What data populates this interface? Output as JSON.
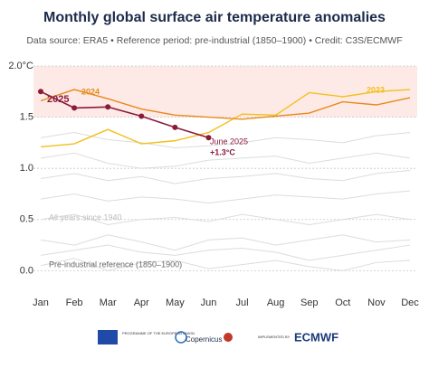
{
  "chart_data": {
    "type": "line",
    "title": "Monthly global surface air temperature anomalies",
    "subtitle": "Data source: ERA5 • Reference period: pre-industrial (1850–1900) • Credit: C3S/ECMWF",
    "categories": [
      "Jan",
      "Feb",
      "Mar",
      "Apr",
      "May",
      "Jun",
      "Jul",
      "Aug",
      "Sep",
      "Oct",
      "Nov",
      "Dec"
    ],
    "ylim": [
      -0.2,
      2.0
    ],
    "yticks": [
      {
        "value": 0,
        "label": "0.0"
      },
      {
        "value": 0.5,
        "label": "0.5"
      },
      {
        "value": 1,
        "label": "1.0"
      },
      {
        "value": 1.5,
        "label": "1.5"
      },
      {
        "value": 2,
        "label": "2.0°C"
      }
    ],
    "grid": true,
    "highlight_band": [
      1.5,
      2.0
    ],
    "background": {
      "label": "All years since 1940",
      "color": "#dcdcdc",
      "values": [
        [
          0.05,
          0.12,
          0.0,
          0.08,
          0.1,
          0.02,
          0.06,
          0.1,
          0.04,
          0.0,
          0.08,
          0.1
        ],
        [
          0.3,
          0.25,
          0.35,
          0.28,
          0.2,
          0.3,
          0.32,
          0.25,
          0.3,
          0.35,
          0.28,
          0.3
        ],
        [
          0.5,
          0.55,
          0.45,
          0.5,
          0.52,
          0.48,
          0.55,
          0.5,
          0.45,
          0.5,
          0.55,
          0.5
        ],
        [
          0.7,
          0.75,
          0.68,
          0.72,
          0.7,
          0.66,
          0.7,
          0.74,
          0.72,
          0.7,
          0.75,
          0.78
        ],
        [
          0.9,
          0.95,
          0.88,
          0.92,
          0.85,
          0.9,
          0.92,
          0.95,
          0.9,
          0.88,
          0.95,
          0.98
        ],
        [
          1.1,
          1.15,
          1.05,
          1.0,
          1.02,
          1.08,
          1.1,
          1.12,
          1.05,
          1.1,
          1.15,
          1.1
        ],
        [
          1.3,
          1.35,
          1.28,
          1.25,
          1.2,
          1.22,
          1.25,
          1.3,
          1.28,
          1.25,
          1.32,
          1.35
        ],
        [
          0.15,
          0.2,
          0.25,
          0.18,
          0.15,
          0.2,
          0.22,
          0.18,
          0.1,
          0.15,
          0.2,
          0.25
        ]
      ]
    },
    "series": [
      {
        "name": "2023",
        "color": "#f2c01c",
        "values": [
          1.21,
          1.24,
          1.38,
          1.24,
          1.27,
          1.35,
          1.53,
          1.52,
          1.74,
          1.7,
          1.75,
          1.77
        ]
      },
      {
        "name": "2024",
        "color": "#e8891a",
        "values": [
          1.66,
          1.77,
          1.68,
          1.58,
          1.52,
          1.5,
          1.48,
          1.51,
          1.54,
          1.65,
          1.62,
          1.69
        ]
      },
      {
        "name": "2025",
        "color": "#8b1a3a",
        "values": [
          1.75,
          1.59,
          1.6,
          1.51,
          1.4,
          1.3,
          null,
          null,
          null,
          null,
          null,
          null
        ]
      }
    ],
    "annotations": [
      "June 2025",
      "+1.3°C",
      "Pre-industrial reference (1850–1900)"
    ],
    "footer": [
      "PROGRAMME OF THE EUROPEAN UNION",
      "Copernicus",
      "IMPLEMENTED BY",
      "ECMWF"
    ]
  }
}
